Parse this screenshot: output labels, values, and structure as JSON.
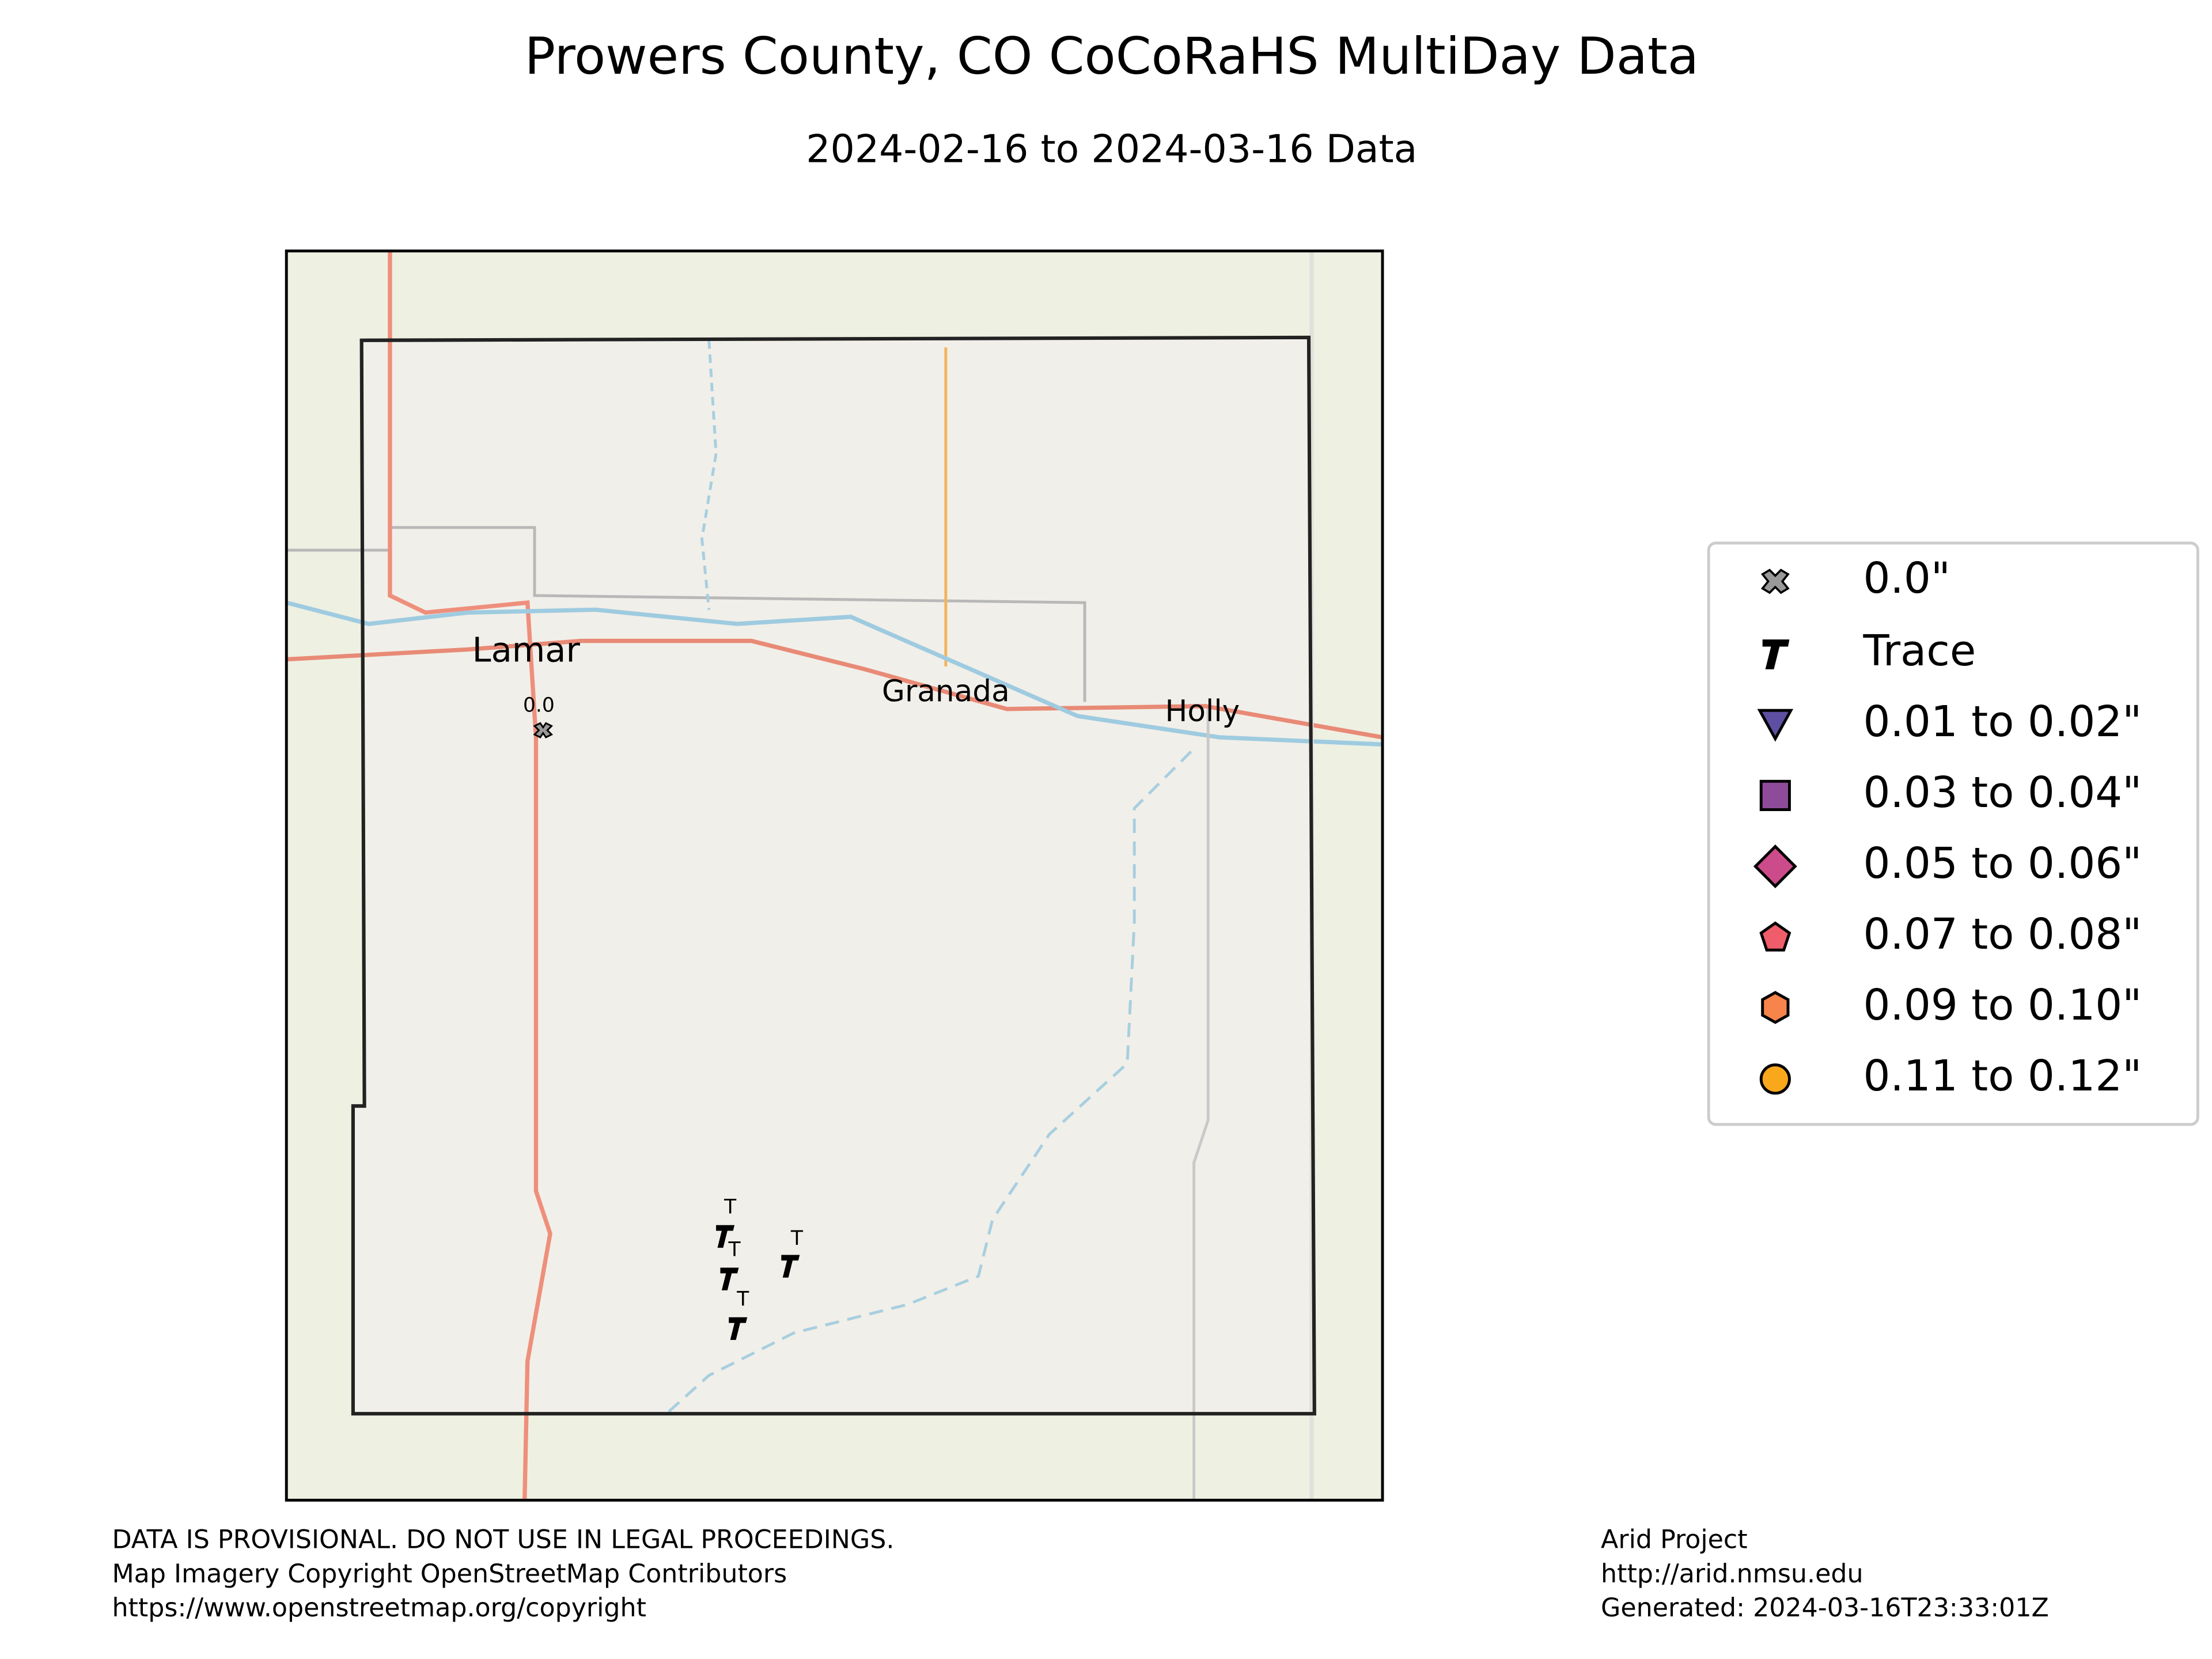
{
  "title": "Prowers County, CO CoCoRaHS MultiDay Data",
  "subtitle": "2024-02-16 to 2024-03-16 Data",
  "map": {
    "places": [
      "Lamar",
      "Granada",
      "Holly"
    ],
    "stations": [
      "0.0",
      "T",
      "T",
      "T",
      "T"
    ]
  },
  "legend": {
    "items": [
      "0.0\"",
      "Trace",
      "0.01 to 0.02\"",
      "0.03 to 0.04\"",
      "0.05 to 0.06\"",
      "0.07 to 0.08\"",
      "0.09 to 0.10\"",
      "0.11 to 0.12\""
    ]
  },
  "footer": {
    "left": [
      "DATA IS PROVISIONAL. DO NOT USE IN LEGAL PROCEEDINGS.",
      "Map Imagery Copyright OpenStreetMap Contributors",
      "https://www.openstreetmap.org/copyright"
    ],
    "right": [
      "Arid Project",
      "http://arid.nmsu.edu",
      "Generated: 2024-03-16T23:33:01Z"
    ]
  }
}
